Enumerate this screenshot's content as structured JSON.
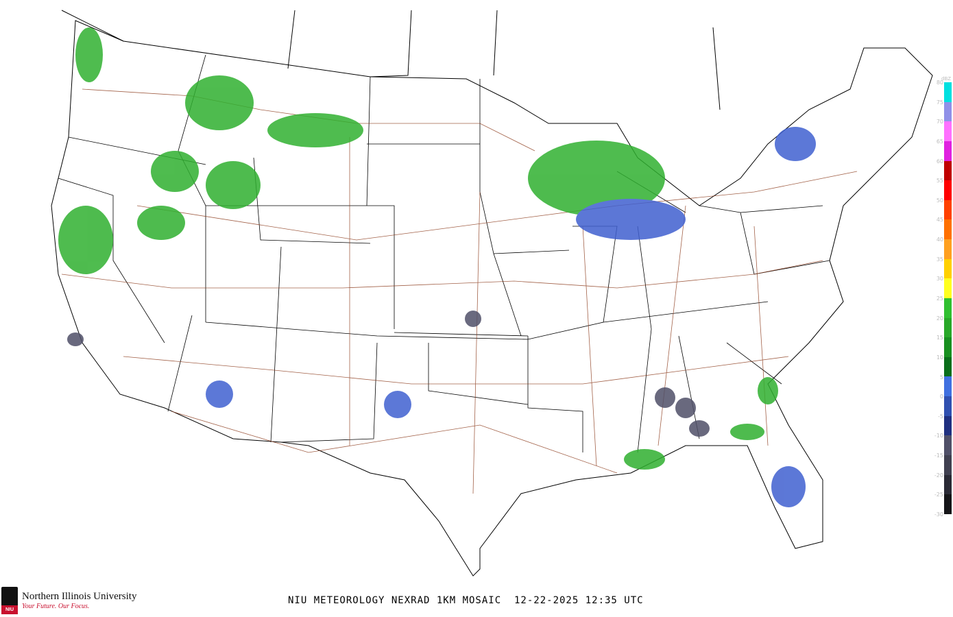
{
  "title": "NIU METEOROLOGY NEXRAD 1KM MOSAIC  12-22-2025 12:35 UTC",
  "logo": {
    "name": "Northern Illinois University",
    "tagline": "Your Future. Our Focus.",
    "badge": "NIU"
  },
  "colorbar": {
    "unit": "dBZ",
    "labels": [
      "80",
      "75",
      "70",
      "65",
      "60",
      "55",
      "50",
      "45",
      "40",
      "35",
      "30",
      "25",
      "20",
      "15",
      "10",
      "5",
      "0",
      "-5",
      "-10",
      "-15",
      "-20",
      "-25",
      "-30"
    ],
    "colors": [
      "#00e0e0",
      "#9090e8",
      "#ff70ff",
      "#e020e0",
      "#c00000",
      "#ff0000",
      "#ff4000",
      "#ff7000",
      "#ffa020",
      "#ffd000",
      "#ffff20",
      "#30c030",
      "#28a828",
      "#189020",
      "#0a6e1a",
      "#4070e0",
      "#3050b0",
      "#203080",
      "#505068",
      "#404050",
      "#2a2a35",
      "#151518"
    ]
  },
  "colors": {
    "border": "#000000",
    "highway": "#8b3a1a",
    "light_echo": "#4060d0",
    "moderate_echo": "#30b030"
  }
}
